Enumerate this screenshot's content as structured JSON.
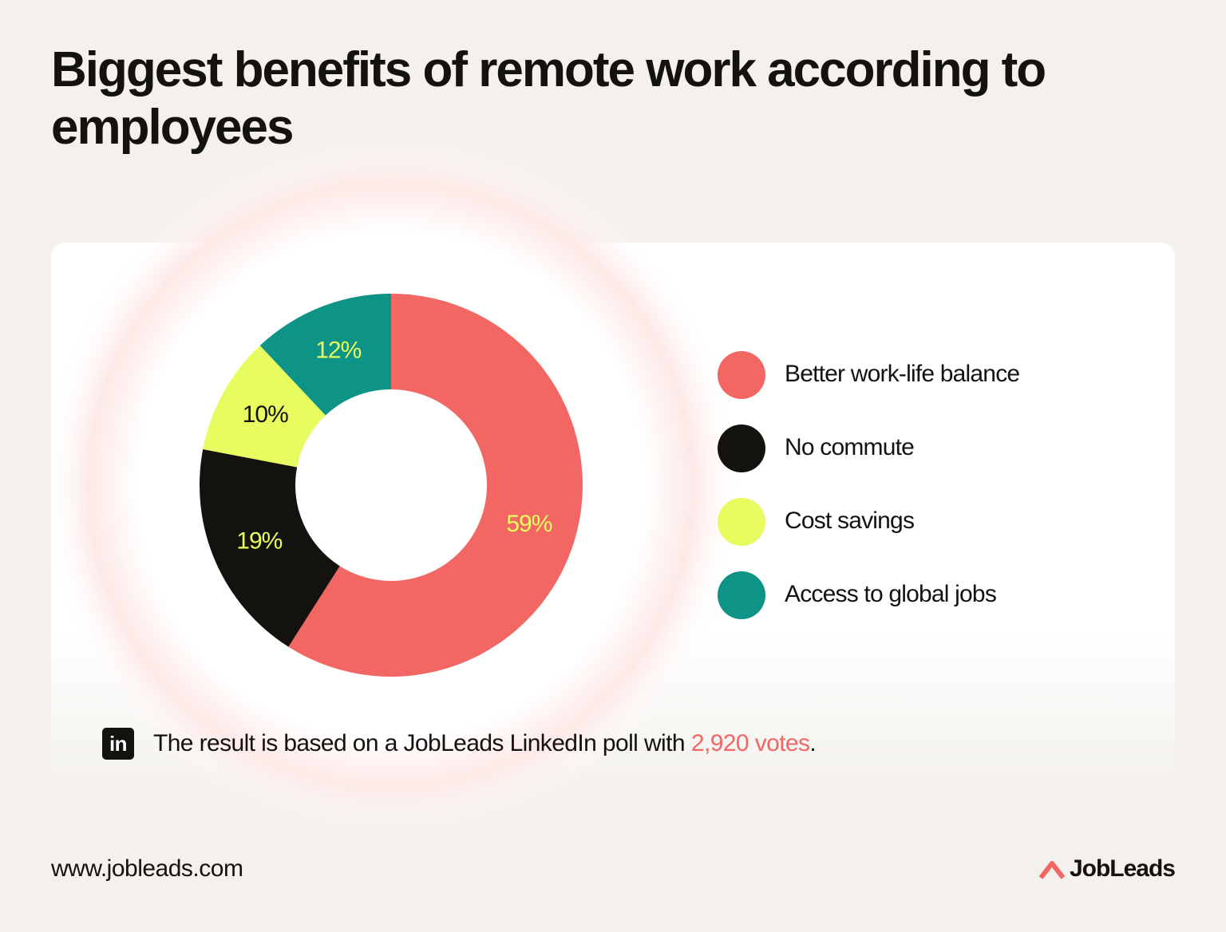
{
  "chart_data": {
    "type": "pie",
    "title": "Biggest benefits of remote work according to employees",
    "categories": [
      "Better work-life balance",
      "No commute",
      "Cost savings",
      "Access to global jobs"
    ],
    "values": [
      59,
      19,
      10,
      12
    ],
    "value_labels": [
      "59%",
      "19%",
      "10%",
      "12%"
    ],
    "colors": [
      "#f26663",
      "#13120f",
      "#e6fc5f",
      "#0e9486"
    ],
    "value_label_colors": [
      "#e6fc5f",
      "#e6fc5f",
      "#13120f",
      "#e6fc5f"
    ],
    "donut": true,
    "legend": "right"
  },
  "note": {
    "icon": "in",
    "text": "The result is based on a JobLeads LinkedIn poll with",
    "highlight": "2,920 votes",
    "end": "."
  },
  "footer": {
    "url": "www.jobleads.com",
    "brand": "JobLeads"
  }
}
